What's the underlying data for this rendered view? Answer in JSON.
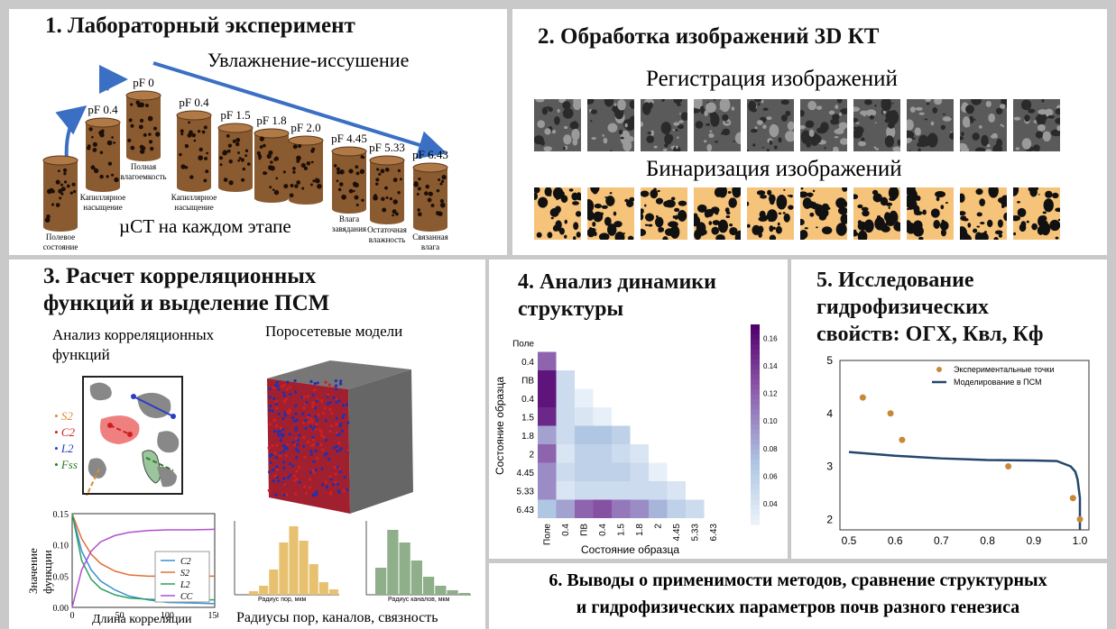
{
  "panel1": {
    "title": "1. Лабораторный эксперимент",
    "arrow_label": "Увлажнение-иссушение",
    "bottom_label": "µCT на каждом этапе",
    "samples": [
      {
        "pf": "",
        "caption1": "Полевое",
        "caption2": "состояние"
      },
      {
        "pf": "pF 0.4",
        "caption1": "Капиллярное",
        "caption2": "насыщение"
      },
      {
        "pf": "pF 0",
        "caption1": "Полная",
        "caption2": "влагоемкость"
      },
      {
        "pf": "pF 0.4",
        "caption1": "Капиллярное",
        "caption2": "насыщение"
      },
      {
        "pf": "pF 1.5",
        "caption1": "",
        "caption2": ""
      },
      {
        "pf": "pF 1.8",
        "caption1": "",
        "caption2": ""
      },
      {
        "pf": "pF 2.0",
        "caption1": "",
        "caption2": ""
      },
      {
        "pf": "pF 4.45",
        "caption1": "Влага",
        "caption2": "завядания"
      },
      {
        "pf": "pF 5.33",
        "caption1": "Остаточная",
        "caption2": "влажность"
      },
      {
        "pf": "pF 6.43",
        "caption1": "Связанная",
        "caption2": "влага"
      }
    ]
  },
  "panel2": {
    "title": "2. Обработка изображений 3D КТ",
    "registration_label": "Регистрация изображений",
    "binarization_label": "Бинаризация изображений"
  },
  "panel3": {
    "title_line1": "3. Расчет корреляционных",
    "title_line2": "функций и выделение ПСМ",
    "analysis_label_line1": "Анализ корреляционных",
    "analysis_label_line2": "функций",
    "pnm_label": "Поросетевые модели",
    "legend_s2": "S2",
    "legend_c2": "C2",
    "legend_l2": "L2",
    "legend_fss": "Fss",
    "plot_ylabel": "Значение функции",
    "plot_xlabel": "Длина корреляции",
    "hist_label": "Радиусы пор, каналов, связность",
    "hist1_xlabel": "Радиус пор, мкм",
    "hist2_xlabel": "Радиус каналов, мкм",
    "line_legend": [
      "C2",
      "S2",
      "L2",
      "CC"
    ],
    "line_colors": [
      "#3a8fd6",
      "#e0703a",
      "#2ca05a",
      "#b050d0"
    ],
    "yticks": [
      "0.15",
      "0.10",
      "0.05",
      "0.00"
    ],
    "xticks": [
      "0",
      "50",
      "100",
      "150"
    ]
  },
  "panel4": {
    "title_line1": "4. Анализ динамики",
    "title_line2": "структуры",
    "ylabel": "Состояние образца",
    "xlabel": "Состояние образца",
    "labels": [
      "Поле",
      "0.4",
      "ПВ",
      "0.4",
      "1.5",
      "1.8",
      "2",
      "4.45",
      "5.33",
      "6.43"
    ],
    "colorbar_ticks": [
      "0.16",
      "0.14",
      "0.12",
      "0.10",
      "0.08",
      "0.06",
      "0.04"
    ],
    "matrix": [
      [
        null,
        null,
        null,
        null,
        null,
        null,
        null,
        null,
        null,
        null
      ],
      [
        0.12,
        null,
        null,
        null,
        null,
        null,
        null,
        null,
        null,
        null
      ],
      [
        0.16,
        0.05,
        null,
        null,
        null,
        null,
        null,
        null,
        null,
        null
      ],
      [
        0.16,
        0.05,
        0.03,
        null,
        null,
        null,
        null,
        null,
        null,
        null
      ],
      [
        0.15,
        0.05,
        0.04,
        0.03,
        null,
        null,
        null,
        null,
        null,
        null
      ],
      [
        0.09,
        0.05,
        0.07,
        0.07,
        0.06,
        null,
        null,
        null,
        null,
        null
      ],
      [
        0.12,
        0.04,
        0.06,
        0.06,
        0.05,
        0.04,
        null,
        null,
        null,
        null
      ],
      [
        0.1,
        0.05,
        0.06,
        0.06,
        0.06,
        0.05,
        0.03,
        null,
        null,
        null
      ],
      [
        0.1,
        0.04,
        0.05,
        0.05,
        0.05,
        0.05,
        0.05,
        0.04,
        null,
        null
      ],
      [
        0.07,
        0.09,
        0.12,
        0.13,
        0.11,
        0.1,
        0.08,
        0.06,
        0.05,
        null
      ]
    ]
  },
  "panel5": {
    "title_line1": "5. Исследование",
    "title_line2": "гидрофизических",
    "title_line3": "свойств: ОГХ, Квл, Кф",
    "legend_points": "Экспериментальные точки",
    "legend_line": "Моделирование в ПСМ",
    "xticks": [
      "0.5",
      "0.6",
      "0.7",
      "0.8",
      "0.9",
      "1.0"
    ],
    "yticks": [
      "5",
      "4",
      "3",
      "2"
    ],
    "points_color": "#c8883a",
    "line_color": "#24476b"
  },
  "chart_data": [
    {
      "type": "scatter",
      "title": "",
      "xlabel": "",
      "ylabel": "",
      "xlim": [
        0.5,
        1.0
      ],
      "ylim": [
        1.8,
        5.0
      ],
      "series": [
        {
          "name": "Экспериментальные точки",
          "x": [
            0.53,
            0.59,
            0.615,
            0.845,
            0.985,
            1.0
          ],
          "y": [
            4.3,
            4.0,
            3.5,
            3.0,
            2.4,
            2.0
          ]
        },
        {
          "name": "Моделирование в ПСМ",
          "type": "line",
          "x": [
            0.5,
            0.6,
            0.7,
            0.8,
            0.9,
            0.95,
            0.98,
            0.99,
            0.995,
            1.0,
            1.0
          ],
          "y": [
            3.27,
            3.2,
            3.15,
            3.12,
            3.11,
            3.1,
            3.0,
            2.9,
            2.75,
            2.4,
            1.8
          ]
        }
      ]
    },
    {
      "type": "line",
      "title": "",
      "xlabel": "Длина корреляции",
      "ylabel": "Значение функции",
      "xlim": [
        0,
        150
      ],
      "ylim": [
        0,
        0.15
      ],
      "x": [
        0,
        10,
        20,
        30,
        45,
        60,
        80,
        100,
        125,
        150
      ],
      "series": [
        {
          "name": "C2",
          "values": [
            0.15,
            0.09,
            0.06,
            0.042,
            0.028,
            0.018,
            0.012,
            0.008,
            0.007,
            0.006
          ]
        },
        {
          "name": "S2",
          "values": [
            0.15,
            0.11,
            0.085,
            0.07,
            0.058,
            0.052,
            0.05,
            0.05,
            0.05,
            0.05
          ]
        },
        {
          "name": "L2",
          "values": [
            0.15,
            0.075,
            0.045,
            0.03,
            0.02,
            0.015,
            0.013,
            0.012,
            0.012,
            0.012
          ]
        },
        {
          "name": "CC",
          "values": [
            0.0,
            0.06,
            0.09,
            0.105,
            0.115,
            0.12,
            0.123,
            0.124,
            0.124,
            0.125
          ]
        }
      ]
    }
  ],
  "panel6": {
    "line1": "6. Выводы о применимости методов, сравнение структурных",
    "line2": "и гидрофизических параметров почв разного генезиса"
  }
}
